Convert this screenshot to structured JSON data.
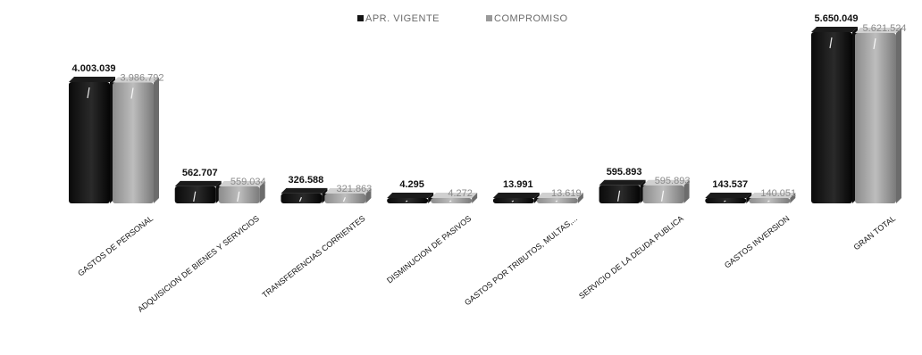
{
  "chart_data": {
    "type": "bar",
    "title": "",
    "xlabel": "",
    "ylabel": "",
    "legend_position": "top",
    "grid": false,
    "categories": [
      "GASTOS DE PERSONAL",
      "ADQUISICION DE BIENES Y SERVICIOS",
      "TRANSFERENCIAS CORRIENTES",
      "DISMINUCION DE PASIVOS",
      "GASTOS POR TRIBUTOS, MULTAS,...",
      "SERVICIO DE LA DEUDA PUBLICA",
      "GASTOS INVERSION",
      "GRAN TOTAL"
    ],
    "series": [
      {
        "name": "APR. VIGENTE",
        "color": "#141414",
        "values": [
          4003039,
          562707,
          326588,
          4295,
          13991,
          595893,
          143537,
          5650049
        ],
        "labels": [
          "4.003.039",
          "562.707",
          "326.588",
          "4.295",
          "13.991",
          "595.893",
          "143.537",
          "5.650.049"
        ]
      },
      {
        "name": "COMPROMISO",
        "color": "#9a9a9a",
        "values": [
          3986792,
          559034,
          321863,
          4272,
          13619,
          595893,
          140051,
          5621524
        ],
        "labels": [
          "3.986.792",
          "559.034",
          "321.863",
          "4.272",
          "13.619",
          "595.893",
          "140.051",
          "5.621.524"
        ]
      }
    ]
  }
}
